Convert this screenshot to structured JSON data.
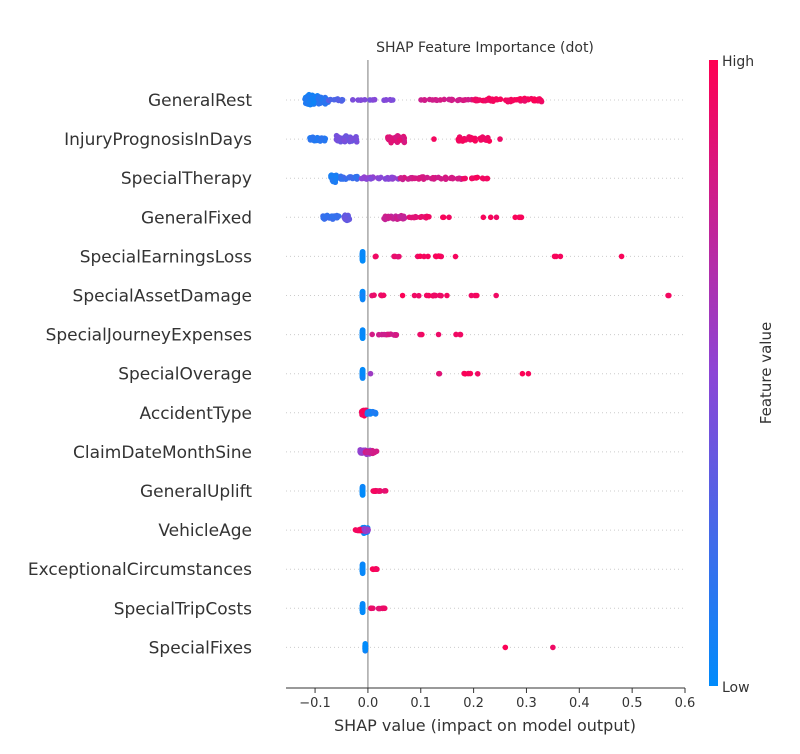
{
  "chart_data": {
    "type": "scatter",
    "title": "SHAP Feature Importance (dot)",
    "xlabel": "SHAP value (impact on model output)",
    "ylabel": "",
    "xlim": [
      -0.155,
      0.6
    ],
    "xticks": [
      -0.1,
      0.0,
      0.1,
      0.2,
      0.3,
      0.4,
      0.5,
      0.6
    ],
    "xtick_labels": [
      "−0.1",
      "0.0",
      "0.1",
      "0.2",
      "0.3",
      "0.4",
      "0.5",
      "0.6"
    ],
    "grid": false,
    "colorbar": {
      "label": "Feature value",
      "high_label": "High",
      "low_label": "Low",
      "low_color": "#008bfb",
      "mid_color": "#8c45d6",
      "high_color": "#ff0052"
    },
    "zero_line_color": "#999999",
    "features": [
      {
        "name": "GeneralRest",
        "clusters": [
          [
            -0.12,
            -0.095,
            55,
            0.08,
            7.0
          ],
          [
            -0.095,
            -0.075,
            30,
            0.15,
            4.5
          ],
          [
            -0.075,
            -0.035,
            10,
            0.3,
            1.2
          ],
          [
            -0.03,
            0.05,
            14,
            0.45,
            0.5
          ],
          [
            0.1,
            0.2,
            25,
            0.8,
            0.6
          ],
          [
            0.2,
            0.33,
            60,
            0.95,
            1.8
          ]
        ]
      },
      {
        "name": "InjuryPrognosisInDays",
        "clusters": [
          [
            -0.11,
            -0.08,
            28,
            0.15,
            3.0
          ],
          [
            -0.06,
            -0.02,
            40,
            0.4,
            4.0
          ],
          [
            0.035,
            0.07,
            40,
            0.85,
            4.0
          ],
          [
            0.125,
            0.13,
            1,
            0.95,
            0.0
          ],
          [
            0.17,
            0.23,
            30,
            0.95,
            2.5
          ],
          [
            0.25,
            0.255,
            1,
            0.95,
            0.0
          ]
        ]
      },
      {
        "name": "SpecialTherapy",
        "clusters": [
          [
            -0.07,
            -0.06,
            35,
            0.1,
            5.0
          ],
          [
            -0.055,
            -0.02,
            25,
            0.2,
            2.0
          ],
          [
            -0.015,
            0.06,
            25,
            0.5,
            1.2
          ],
          [
            0.06,
            0.18,
            45,
            0.8,
            1.5
          ],
          [
            0.18,
            0.23,
            12,
            0.95,
            1.0
          ]
        ]
      },
      {
        "name": "GeneralFixed",
        "clusters": [
          [
            -0.085,
            -0.055,
            30,
            0.2,
            2.5
          ],
          [
            -0.045,
            -0.035,
            20,
            0.35,
            4.0
          ],
          [
            0.03,
            0.07,
            30,
            0.75,
            2.5
          ],
          [
            0.075,
            0.12,
            14,
            0.9,
            1.0
          ],
          [
            0.14,
            0.16,
            3,
            0.95,
            0.0
          ],
          [
            0.195,
            0.25,
            3,
            0.95,
            0.0
          ],
          [
            0.26,
            0.31,
            4,
            0.95,
            0.0
          ]
        ]
      },
      {
        "name": "SpecialEarningsLoss",
        "clusters": [
          [
            -0.01,
            -0.01,
            60,
            0.02,
            5.0
          ],
          [
            0.0,
            0.06,
            6,
            0.9,
            0.4
          ],
          [
            0.07,
            0.17,
            10,
            0.95,
            0.4
          ],
          [
            0.35,
            0.365,
            3,
            0.95,
            0.0
          ],
          [
            0.48,
            0.485,
            1,
            0.95,
            0.0
          ]
        ]
      },
      {
        "name": "SpecialAssetDamage",
        "clusters": [
          [
            -0.01,
            -0.01,
            60,
            0.02,
            5.0
          ],
          [
            0.0,
            0.03,
            5,
            0.9,
            0.6
          ],
          [
            0.05,
            0.15,
            12,
            0.95,
            0.4
          ],
          [
            0.195,
            0.255,
            4,
            0.95,
            0.0
          ],
          [
            0.56,
            0.57,
            2,
            0.95,
            0.0
          ]
        ]
      },
      {
        "name": "SpecialJourneyExpenses",
        "clusters": [
          [
            -0.01,
            -0.01,
            60,
            0.02,
            5.0
          ],
          [
            0.0,
            0.06,
            14,
            0.8,
            0.8
          ],
          [
            0.095,
            0.18,
            6,
            0.95,
            0.3
          ]
        ]
      },
      {
        "name": "SpecialOverage",
        "clusters": [
          [
            -0.01,
            -0.01,
            60,
            0.02,
            5.0
          ],
          [
            0.005,
            0.01,
            1,
            0.6,
            0.0
          ],
          [
            0.09,
            0.14,
            3,
            0.85,
            0.0
          ],
          [
            0.18,
            0.215,
            5,
            0.95,
            0.3
          ],
          [
            0.255,
            0.315,
            2,
            0.95,
            0.0
          ]
        ]
      },
      {
        "name": "AccidentType",
        "clusters": [
          [
            -0.012,
            -0.002,
            40,
            0.95,
            3.5
          ],
          [
            -0.002,
            0.015,
            25,
            0.08,
            2.2
          ]
        ]
      },
      {
        "name": "ClaimDateMonthSine",
        "clusters": [
          [
            -0.015,
            0.005,
            30,
            0.55,
            3.0
          ],
          [
            -0.005,
            0.018,
            20,
            0.8,
            1.8
          ]
        ]
      },
      {
        "name": "GeneralUplift",
        "clusters": [
          [
            -0.01,
            -0.01,
            60,
            0.02,
            5.0
          ],
          [
            0.01,
            0.035,
            14,
            0.92,
            0.6
          ]
        ]
      },
      {
        "name": "VehicleAge",
        "clusters": [
          [
            -0.01,
            0.0,
            30,
            0.05,
            3.5
          ],
          [
            -0.025,
            0.0,
            20,
            0.95,
            1.2
          ],
          [
            -0.008,
            0.002,
            15,
            0.55,
            1.5
          ]
        ]
      },
      {
        "name": "ExceptionalCircumstances",
        "clusters": [
          [
            -0.01,
            -0.01,
            60,
            0.02,
            5.0
          ],
          [
            0.005,
            0.018,
            8,
            0.95,
            0.5
          ]
        ]
      },
      {
        "name": "SpecialTripCosts",
        "clusters": [
          [
            -0.01,
            -0.01,
            60,
            0.02,
            5.0
          ],
          [
            0.005,
            0.035,
            10,
            0.9,
            0.5
          ]
        ]
      },
      {
        "name": "SpecialFixes",
        "clusters": [
          [
            -0.005,
            -0.005,
            60,
            0.02,
            4.0
          ],
          [
            0.26,
            0.262,
            1,
            0.95,
            0.0
          ],
          [
            0.35,
            0.352,
            1,
            0.95,
            0.0
          ]
        ]
      }
    ]
  }
}
